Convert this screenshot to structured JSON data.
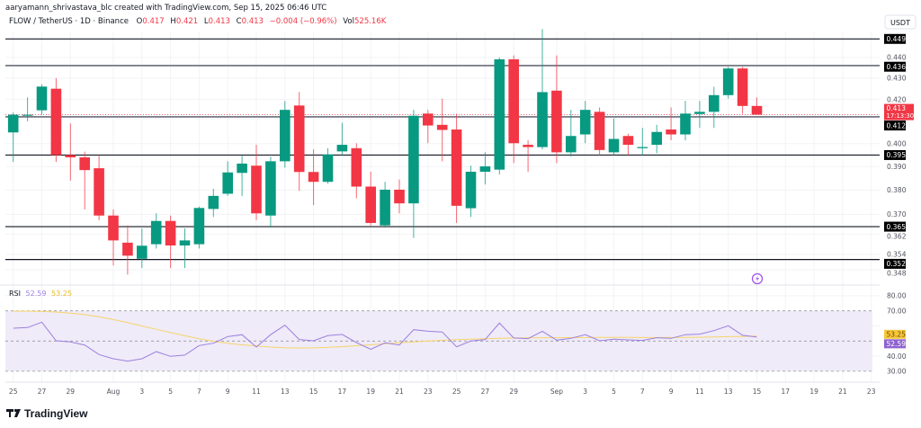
{
  "header": {
    "attribution": "aaryamann_shrivastava_blc created with TradingView.com, Sep 15, 2025 06:46 UTC",
    "symbol": "FLOW / TetherUS · 1D · Binance",
    "o_label": "O",
    "o_value": "0.417",
    "h_label": "H",
    "h_value": "0.421",
    "l_label": "L",
    "l_value": "0.413",
    "c_label": "C",
    "c_value": "0.413",
    "change": "−0.004 (−0.96%)",
    "vol_label": "Vol",
    "vol_value": "525.16K"
  },
  "currency_label": "USDT",
  "current_price": {
    "price": "0.413",
    "countdown": "17:13:30",
    "value": 0.413
  },
  "colors": {
    "up": "#089981",
    "down": "#f23645",
    "rsi": "#9c7fe0",
    "rsi_ma": "#f7d46a",
    "rsi_band": "#efebf8"
  },
  "rsi_legend": {
    "label": "RSI",
    "value": "52.59",
    "ma_value": "53.25"
  },
  "logo_text": "TradingView",
  "alert_icon": "lightning-icon",
  "chart_data": {
    "type": "candlestick",
    "title": "FLOW / TetherUS · 1D · Binance",
    "scale": "log",
    "ylim": [
      0.345,
      0.456
    ],
    "start_date": "2025-07-25",
    "candles_ohlc": [
      [
        0.405,
        0.414,
        0.392,
        0.413
      ],
      [
        0.413,
        0.421,
        0.41,
        0.413
      ],
      [
        0.415,
        0.427,
        0.413,
        0.426
      ],
      [
        0.425,
        0.43,
        0.392,
        0.395
      ],
      [
        0.395,
        0.409,
        0.384,
        0.394
      ],
      [
        0.394,
        0.3965,
        0.372,
        0.3885
      ],
      [
        0.3893,
        0.395,
        0.3676,
        0.3695
      ],
      [
        0.3695,
        0.372,
        0.3497,
        0.3595
      ],
      [
        0.3586,
        0.3655,
        0.3462,
        0.3535
      ],
      [
        0.3523,
        0.3643,
        0.3487,
        0.3574
      ],
      [
        0.358,
        0.3704,
        0.3563,
        0.3673
      ],
      [
        0.3673,
        0.3695,
        0.3487,
        0.3575
      ],
      [
        0.3575,
        0.3643,
        0.3487,
        0.3595
      ],
      [
        0.358,
        0.3732,
        0.3563,
        0.3726
      ],
      [
        0.3722,
        0.3806,
        0.3689,
        0.3776
      ],
      [
        0.3785,
        0.3923,
        0.3776,
        0.3875
      ],
      [
        0.3873,
        0.395,
        0.3776,
        0.3913
      ],
      [
        0.3904,
        0.3995,
        0.3676,
        0.3704
      ],
      [
        0.3695,
        0.3943,
        0.3646,
        0.3923
      ],
      [
        0.3923,
        0.4193,
        0.3895,
        0.4152
      ],
      [
        0.4172,
        0.4234,
        0.3797,
        0.3877
      ],
      [
        0.3877,
        0.3975,
        0.3738,
        0.3835
      ],
      [
        0.3835,
        0.398,
        0.3828,
        0.3953
      ],
      [
        0.3966,
        0.4093,
        0.3949,
        0.3995
      ],
      [
        0.398,
        0.4002,
        0.3766,
        0.3815
      ],
      [
        0.3815,
        0.3878,
        0.3655,
        0.3665
      ],
      [
        0.3655,
        0.3835,
        0.3646,
        0.3802
      ],
      [
        0.3802,
        0.3845,
        0.3704,
        0.3745
      ],
      [
        0.3745,
        0.4152,
        0.3605,
        0.4125
      ],
      [
        0.4135,
        0.4152,
        0.4002,
        0.4081
      ],
      [
        0.4084,
        0.4204,
        0.3923,
        0.4061
      ],
      [
        0.4063,
        0.4134,
        0.3665,
        0.3735
      ],
      [
        0.3725,
        0.3904,
        0.3689,
        0.3878
      ],
      [
        0.3878,
        0.3962,
        0.3824,
        0.3901
      ],
      [
        0.3887,
        0.4399,
        0.3866,
        0.439
      ],
      [
        0.439,
        0.4409,
        0.3915,
        0.4002
      ],
      [
        0.3995,
        0.4015,
        0.3878,
        0.3985
      ],
      [
        0.3985,
        0.4539,
        0.3975,
        0.4234
      ],
      [
        0.4241,
        0.4409,
        0.3915,
        0.3962
      ],
      [
        0.3962,
        0.4152,
        0.3943,
        0.4034
      ],
      [
        0.4041,
        0.4193,
        0.4002,
        0.4152
      ],
      [
        0.4143,
        0.4163,
        0.3949,
        0.3972
      ],
      [
        0.3962,
        0.4113,
        0.395,
        0.4021
      ],
      [
        0.4034,
        0.4044,
        0.395,
        0.3995
      ],
      [
        0.398,
        0.407,
        0.3949,
        0.3985
      ],
      [
        0.3995,
        0.4084,
        0.3958,
        0.4052
      ],
      [
        0.4063,
        0.4163,
        0.4015,
        0.4041
      ],
      [
        0.4041,
        0.4193,
        0.4015,
        0.4135
      ],
      [
        0.4133,
        0.4193,
        0.407,
        0.4143
      ],
      [
        0.4143,
        0.4259,
        0.407,
        0.422
      ],
      [
        0.422,
        0.4354,
        0.4204,
        0.4346
      ],
      [
        0.4346,
        0.4354,
        0.4134,
        0.417
      ],
      [
        0.417,
        0.421,
        0.413,
        0.413
      ]
    ],
    "levels": [
      {
        "value": 0.449,
        "label": "0.449",
        "style": "black"
      },
      {
        "value": 0.436,
        "label": "0.436",
        "style": "gray"
      },
      {
        "value": 0.412,
        "label": "0.412",
        "style": "gray"
      },
      {
        "value": 0.395,
        "label": "0.395",
        "style": "black"
      },
      {
        "value": 0.365,
        "label": "0.365",
        "style": "black"
      },
      {
        "value": 0.352,
        "label": "0.352",
        "style": "black"
      }
    ],
    "y_ticks": [
      0.44,
      0.43,
      0.42,
      0.4,
      0.39,
      0.38,
      0.37,
      0.362,
      0.354,
      0.348
    ],
    "y_tick_labels": [
      "0.440",
      "0.430",
      "0.420",
      "0.400",
      "0.390",
      "0.380",
      "0.370",
      "0.362",
      "0.354",
      "0.348"
    ],
    "x_ticks": [
      {
        "label": "25",
        "day": 0
      },
      {
        "label": "27",
        "day": 2
      },
      {
        "label": "29",
        "day": 4
      },
      {
        "label": "Aug",
        "day": 7
      },
      {
        "label": "3",
        "day": 9
      },
      {
        "label": "5",
        "day": 11
      },
      {
        "label": "7",
        "day": 13
      },
      {
        "label": "9",
        "day": 15
      },
      {
        "label": "11",
        "day": 17
      },
      {
        "label": "13",
        "day": 19
      },
      {
        "label": "15",
        "day": 21
      },
      {
        "label": "17",
        "day": 23
      },
      {
        "label": "19",
        "day": 25
      },
      {
        "label": "21",
        "day": 27
      },
      {
        "label": "23",
        "day": 29
      },
      {
        "label": "25",
        "day": 31
      },
      {
        "label": "27",
        "day": 33
      },
      {
        "label": "29",
        "day": 35
      },
      {
        "label": "Sep",
        "day": 38
      },
      {
        "label": "3",
        "day": 40
      },
      {
        "label": "5",
        "day": 42
      },
      {
        "label": "7",
        "day": 44
      },
      {
        "label": "9",
        "day": 46
      },
      {
        "label": "11",
        "day": 48
      },
      {
        "label": "13",
        "day": 50
      },
      {
        "label": "15",
        "day": 52
      },
      {
        "label": "17",
        "day": 54
      },
      {
        "label": "19",
        "day": 56
      },
      {
        "label": "21",
        "day": 58
      },
      {
        "label": "23",
        "day": 60
      }
    ],
    "rsi": {
      "values": [
        58.5,
        58.9,
        62.5,
        50.2,
        49.4,
        47.4,
        41.1,
        38.3,
        36.7,
        38.3,
        43,
        39.9,
        40.7,
        47,
        48.6,
        53,
        54.2,
        46,
        54.2,
        60.5,
        51,
        50.2,
        53.6,
        54.4,
        49,
        44.6,
        48.8,
        47.4,
        57.5,
        56.5,
        56,
        46.2,
        50,
        51,
        61.9,
        52,
        51.6,
        56.5,
        50.6,
        51.8,
        54.2,
        50.2,
        51.2,
        50.8,
        50.4,
        52.2,
        51.8,
        54.2,
        54.6,
        56.9,
        60.1,
        53.8,
        52.59
      ],
      "ma": [
        69.8,
        69.8,
        69.6,
        69.2,
        68.5,
        67.5,
        66,
        64.2,
        62.2,
        60,
        57.8,
        55.6,
        53.5,
        51.5,
        49.8,
        48.5,
        47.5,
        46.7,
        46,
        45.6,
        45.4,
        45.5,
        45.8,
        46.3,
        46.9,
        47.5,
        48.2,
        48.8,
        49.4,
        50,
        50.5,
        50.9,
        51.2,
        51.5,
        51.8,
        52,
        52.1,
        52.2,
        52.2,
        52.3,
        52.3,
        52.4,
        52.4,
        52.4,
        52.3,
        52.3,
        52.3,
        52.4,
        52.5,
        52.7,
        52.9,
        53.1,
        53.25
      ],
      "band": [
        30,
        70
      ],
      "ticks": [
        80,
        70,
        40,
        30
      ],
      "tick_labels": [
        "80.00",
        "70.00",
        "40.00",
        "30.00"
      ],
      "ylim": [
        20,
        90
      ]
    }
  }
}
